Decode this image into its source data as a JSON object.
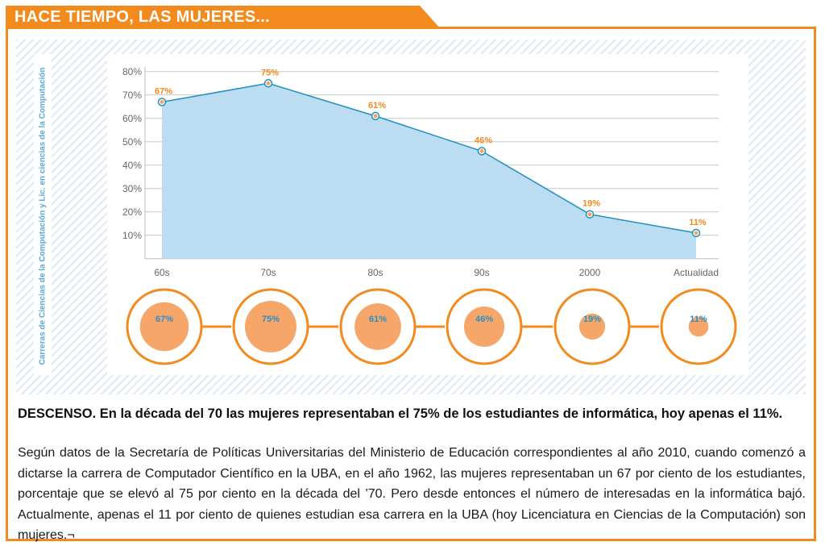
{
  "header": {
    "title": "HACE TIEMPO, LAS MUJERES..."
  },
  "chart_data": {
    "type": "area",
    "categories": [
      "60s",
      "70s",
      "80s",
      "90s",
      "2000",
      "Actualidad"
    ],
    "values": [
      67,
      75,
      61,
      46,
      19,
      11
    ],
    "data_labels": [
      "67%",
      "75%",
      "61%",
      "46%",
      "19%",
      "11%"
    ],
    "yticks": [
      "10%",
      "20%",
      "30%",
      "40%",
      "50%",
      "60%",
      "70%",
      "80%"
    ],
    "ytick_values": [
      10,
      20,
      30,
      40,
      50,
      60,
      70,
      80
    ],
    "ylim": [
      0,
      80
    ],
    "ylabel": "Carreras de Ciencias de la Computación y Lic. en ciencias de la Computación",
    "grid": true,
    "colors": {
      "line": "#1f90c0",
      "area": "#bcdcf2",
      "marker_fill": "#f7a35c",
      "label_orange": "#f28a1e",
      "label_blue": "#2d8ec4",
      "grid": "#c8c8c8"
    }
  },
  "bubbles": {
    "labels": [
      "67%",
      "75%",
      "61%",
      "46%",
      "19%",
      "11%"
    ],
    "values": [
      67,
      75,
      61,
      46,
      19,
      11
    ],
    "ring_color": "#f28a1e",
    "fill_color": "#f7a66a"
  },
  "caption": "DESCENSO. En la década del 70 las mujeres representaban el 75% de los estudiantes de informática, hoy apenas el 11%.",
  "body": "Según datos de la Secretaría de Políticas Universitarias del Ministerio de Educación correspondientes al año 2010, cuando comenzó a dictarse la carrera de Computador Científico en la UBA, en el año 1962, las mujeres representaban un 67 por ciento de los estudiantes, porcentaje que se elevó al 75 por ciento en la década del ’70. Pero desde entonces el número de interesadas en la informática bajó. Actualmente, apenas el 11 por ciento de quienes estudian esa carrera en la UBA (hoy Licenciatura en Ciencias de la Computación) son mujeres.¬"
}
